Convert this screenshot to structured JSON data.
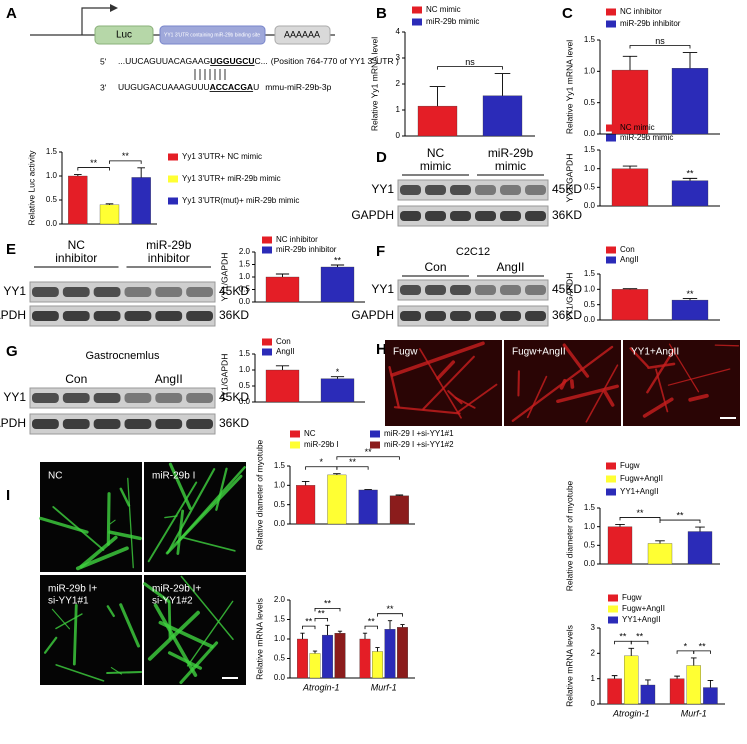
{
  "panel_labels": [
    "A",
    "B",
    "C",
    "D",
    "E",
    "F",
    "G",
    "H",
    "I"
  ],
  "construct": {
    "luc": "Luc",
    "utr": "YY1 3'UTR containing miR-29b binding site",
    "polya": "AAAAAA",
    "seq5_prime": "5'",
    "seq5_a": "...UUCAGUUACAGAAG",
    "seq5_site": "UGGUGCU",
    "seq5_b": "C...",
    "seq5_note": "(Position 764-770 of YY1 3′ UTR )",
    "seq3_prime": "3'",
    "seq3_a": "UUGUGACUAAAGUUU",
    "seq3_site": "ACCACGA",
    "seq3_b": "U",
    "mirna": "mmu-miR-29b-3p"
  },
  "blots": [
    {
      "lanes": [
        [
          "NC",
          "mimic"
        ],
        [
          "miR-29b",
          "mimic"
        ]
      ],
      "rows": [
        "YY1",
        "GAPDH"
      ],
      "sizes": [
        "45KD",
        "36KD"
      ]
    },
    {
      "lanes": [
        [
          "NC",
          "inhibitor"
        ],
        [
          "miR-29b",
          "inhibitor"
        ]
      ],
      "rows": [
        "YY1",
        "GAPDH"
      ],
      "sizes": [
        "45KD",
        "36KD"
      ]
    },
    {
      "title": "C2C12",
      "lanes": [
        [
          "Con"
        ],
        [
          "AngII"
        ]
      ],
      "rows": [
        "YY1",
        "GAPDH"
      ],
      "sizes": [
        "45KD",
        "36KD"
      ]
    },
    {
      "title": "Gastrocnemlus",
      "lanes": [
        [
          "Con"
        ],
        [
          "AngII"
        ]
      ],
      "rows": [
        "YY1",
        "GAPDH"
      ],
      "sizes": [
        "45KD",
        "36KD"
      ]
    }
  ],
  "h_images": [
    "Fugw",
    "Fugw+AngII",
    "YY1+AngII"
  ],
  "i_images": [
    [
      "NC"
    ],
    [
      "miR-29b I"
    ],
    [
      "miR-29b I+",
      "si-YY1#1"
    ],
    [
      "miR-29b I+",
      "si-YY1#2"
    ]
  ],
  "chart_data": [
    {
      "type": "bar",
      "ylabel": "Relative Luc activity",
      "ylim": [
        0,
        1.5
      ],
      "yticks": [
        {
          "value": 0,
          "label": "0.0"
        },
        0.5,
        {
          "value": 1,
          "label": "1.0"
        },
        1.5
      ],
      "series": [
        {
          "name": "Yy1 3'UTR+ NC mimic",
          "color": "#e41e26",
          "values": [
            1.0
          ],
          "errors": [
            0.03
          ]
        },
        {
          "name": "Yy1 3'UTR+ miR-29b mimic",
          "color": "#ffff33",
          "values": [
            0.4
          ],
          "errors": [
            0.02
          ]
        },
        {
          "name": "Yy1 3'UTR(mut)+ miR-29b mimic",
          "color": "#2b2bb8",
          "values": [
            0.97
          ],
          "errors": [
            0.2
          ]
        }
      ],
      "brackets": [
        {
          "label": "**",
          "bars": [
            0,
            1
          ]
        },
        {
          "label": "**",
          "bars": [
            1,
            2
          ]
        }
      ]
    },
    {
      "type": "bar",
      "ylabel": "Relative Yy1 mRNA level",
      "ylim": [
        0,
        4
      ],
      "yticks": [
        0,
        1,
        2,
        3,
        4
      ],
      "series": [
        {
          "name": "NC mimic",
          "color": "#e41e26",
          "values": [
            1.15
          ],
          "errors": [
            0.75
          ]
        },
        {
          "name": "miR-29b mimic",
          "color": "#2b2bb8",
          "values": [
            1.55
          ],
          "errors": [
            0.85
          ]
        }
      ],
      "brackets": [
        {
          "label": "ns",
          "bars": [
            0,
            1
          ]
        }
      ]
    },
    {
      "type": "bar",
      "ylabel": "Relative Yy1 mRNA level",
      "ylim": [
        0,
        1.5
      ],
      "yticks": [
        {
          "value": 0,
          "label": "0.0"
        },
        0.5,
        {
          "value": 1,
          "label": "1.0"
        },
        1.5
      ],
      "series": [
        {
          "name": "NC inhibitor",
          "color": "#e41e26",
          "values": [
            1.02
          ],
          "errors": [
            0.22
          ]
        },
        {
          "name": "miR-29b inhibitor",
          "color": "#2b2bb8",
          "values": [
            1.05
          ],
          "errors": [
            0.25
          ]
        }
      ],
      "brackets": [
        {
          "label": "ns",
          "bars": [
            0,
            1
          ]
        }
      ]
    },
    {
      "type": "bar",
      "ylabel": "YY1/GAPDH",
      "ylim": [
        0,
        1.5
      ],
      "yticks": [
        {
          "value": 0,
          "label": "0.0"
        },
        0.5,
        {
          "value": 1,
          "label": "1.0"
        },
        1.5
      ],
      "series": [
        {
          "name": "NC mimic",
          "color": "#e41e26",
          "values": [
            1.0
          ],
          "errors": [
            0.07
          ]
        },
        {
          "name": "miR-29b mimic",
          "color": "#2b2bb8",
          "values": [
            0.68
          ],
          "errors": [
            0.06
          ]
        }
      ],
      "stars": [
        {
          "label": "**",
          "bar": 1
        }
      ]
    },
    {
      "type": "bar",
      "ylabel": "YY1/GAPDH",
      "ylim": [
        0,
        2
      ],
      "yticks": [
        {
          "value": 0,
          "label": "0.0"
        },
        0.5,
        {
          "value": 1,
          "label": "1.0"
        },
        1.5,
        {
          "value": 2,
          "label": "2.0"
        }
      ],
      "series": [
        {
          "name": "NC inhibitor",
          "color": "#e41e26",
          "values": [
            1.0
          ],
          "errors": [
            0.12
          ]
        },
        {
          "name": "miR-29b inhibitor",
          "color": "#2b2bb8",
          "values": [
            1.4
          ],
          "errors": [
            0.08
          ]
        }
      ],
      "stars": [
        {
          "label": "**",
          "bar": 1
        }
      ]
    },
    {
      "type": "bar",
      "ylabel": "YY1/GAPDH",
      "ylim": [
        0,
        1.5
      ],
      "yticks": [
        {
          "value": 0,
          "label": "0.0"
        },
        0.5,
        {
          "value": 1,
          "label": "1.0"
        },
        1.5
      ],
      "series": [
        {
          "name": "Con",
          "color": "#e41e26",
          "values": [
            1.0
          ],
          "errors": [
            0.02
          ]
        },
        {
          "name": "AngII",
          "color": "#2b2bb8",
          "values": [
            0.65
          ],
          "errors": [
            0.05
          ]
        }
      ],
      "stars": [
        {
          "label": "**",
          "bar": 1
        }
      ]
    },
    {
      "type": "bar",
      "ylabel": "YY1/GAPDH",
      "ylim": [
        0,
        1.5
      ],
      "yticks": [
        {
          "value": 0,
          "label": "0.0"
        },
        0.5,
        {
          "value": 1,
          "label": "1.0"
        },
        1.5
      ],
      "series": [
        {
          "name": "Con",
          "color": "#e41e26",
          "values": [
            1.0
          ],
          "errors": [
            0.13
          ]
        },
        {
          "name": "AngII",
          "color": "#2b2bb8",
          "values": [
            0.73
          ],
          "errors": [
            0.06
          ]
        }
      ],
      "stars": [
        {
          "label": "*",
          "bar": 1
        }
      ]
    },
    {
      "type": "bar",
      "ylabel": "Relative diameter of myotube",
      "ylim": [
        0,
        1.5
      ],
      "yticks": [
        {
          "value": 0,
          "label": "0.0"
        },
        0.5,
        {
          "value": 1,
          "label": "1.0"
        },
        1.5
      ],
      "series": [
        {
          "name": "Fugw",
          "color": "#e41e26",
          "values": [
            1.0
          ],
          "errors": [
            0.06
          ]
        },
        {
          "name": "Fugw+AngII",
          "color": "#ffff33",
          "values": [
            0.55
          ],
          "errors": [
            0.07
          ]
        },
        {
          "name": "YY1+AngII",
          "color": "#2b2bb8",
          "values": [
            0.87
          ],
          "errors": [
            0.12
          ]
        }
      ],
      "brackets": [
        {
          "label": "**",
          "bars": [
            0,
            1
          ]
        },
        {
          "label": "**",
          "bars": [
            1,
            2
          ]
        }
      ]
    },
    {
      "type": "bar",
      "ylabel": "Relative diameter of myotube",
      "ylim": [
        0,
        1.5
      ],
      "yticks": [
        {
          "value": 0,
          "label": "0.0"
        },
        0.5,
        {
          "value": 1,
          "label": "1.0"
        },
        1.5
      ],
      "series": [
        {
          "name": "NC",
          "color": "#e41e26",
          "values": [
            1.0
          ],
          "errors": [
            0.1
          ]
        },
        {
          "name": "miR-29b I",
          "color": "#ffff33",
          "values": [
            1.27
          ],
          "errors": [
            0.03
          ]
        },
        {
          "name": "miR-29 I +si-YY1#1",
          "color": "#2b2bb8",
          "values": [
            0.88
          ],
          "errors": [
            0.01
          ]
        },
        {
          "name": "miR-29 I +si-YY1#2",
          "color": "#8b1c1c",
          "values": [
            0.73
          ],
          "errors": [
            0.02
          ]
        }
      ],
      "brackets": [
        {
          "label": "*",
          "bars": [
            0,
            1
          ]
        },
        {
          "label": "**",
          "bars": [
            1,
            2
          ]
        },
        {
          "label": "**",
          "bars": [
            1,
            3
          ]
        }
      ]
    },
    {
      "type": "bar",
      "ylabel": "Relative mRNA levels",
      "ylim": [
        0,
        2
      ],
      "yticks": [
        {
          "value": 0,
          "label": "0.0"
        },
        0.5,
        {
          "value": 1,
          "label": "1.0"
        },
        1.5,
        {
          "value": 2,
          "label": "2.0"
        }
      ],
      "categories": [
        "Atrogin-1",
        "Murf-1"
      ],
      "series": [
        {
          "color": "#e41e26",
          "values": [
            1.0,
            1.0
          ],
          "errors": [
            0.15,
            0.15
          ]
        },
        {
          "color": "#ffff33",
          "values": [
            0.63,
            0.68
          ],
          "errors": [
            0.06,
            0.1
          ]
        },
        {
          "color": "#2b2bb8",
          "values": [
            1.1,
            1.25
          ],
          "errors": [
            0.25,
            0.22
          ]
        },
        {
          "color": "#8b1c1c",
          "values": [
            1.15,
            1.3
          ],
          "errors": [
            0.05,
            0.07
          ]
        }
      ],
      "brackets": [
        {
          "label": "**",
          "category": 0,
          "bars": [
            0,
            1
          ]
        },
        {
          "label": "**",
          "category": 0,
          "bars": [
            1,
            2
          ]
        },
        {
          "label": "**",
          "category": 0,
          "bars": [
            1,
            3
          ]
        },
        {
          "label": "**",
          "category": 1,
          "bars": [
            0,
            1
          ]
        },
        {
          "label": "**",
          "category": 1,
          "bars": [
            1,
            3
          ]
        }
      ]
    },
    {
      "type": "bar",
      "ylabel": "Relative mRNA levels",
      "ylim": [
        0,
        3
      ],
      "yticks": [
        0,
        1,
        2,
        3
      ],
      "categories": [
        "Atrogin-1",
        "Murf-1"
      ],
      "series": [
        {
          "name": "Fugw",
          "color": "#e41e26",
          "values": [
            1.0,
            1.0
          ],
          "errors": [
            0.12,
            0.1
          ]
        },
        {
          "name": "Fugw+AngII",
          "color": "#ffff33",
          "values": [
            1.9,
            1.52
          ],
          "errors": [
            0.3,
            0.3
          ]
        },
        {
          "name": "YY1+AngII",
          "color": "#2b2bb8",
          "values": [
            0.75,
            0.65
          ],
          "errors": [
            0.2,
            0.28
          ]
        }
      ],
      "brackets": [
        {
          "label": "**",
          "category": 0,
          "bars": [
            0,
            1
          ]
        },
        {
          "label": "**",
          "category": 0,
          "bars": [
            1,
            2
          ]
        },
        {
          "label": "*",
          "category": 1,
          "bars": [
            0,
            1
          ]
        },
        {
          "label": "**",
          "category": 1,
          "bars": [
            1,
            2
          ]
        }
      ]
    }
  ]
}
